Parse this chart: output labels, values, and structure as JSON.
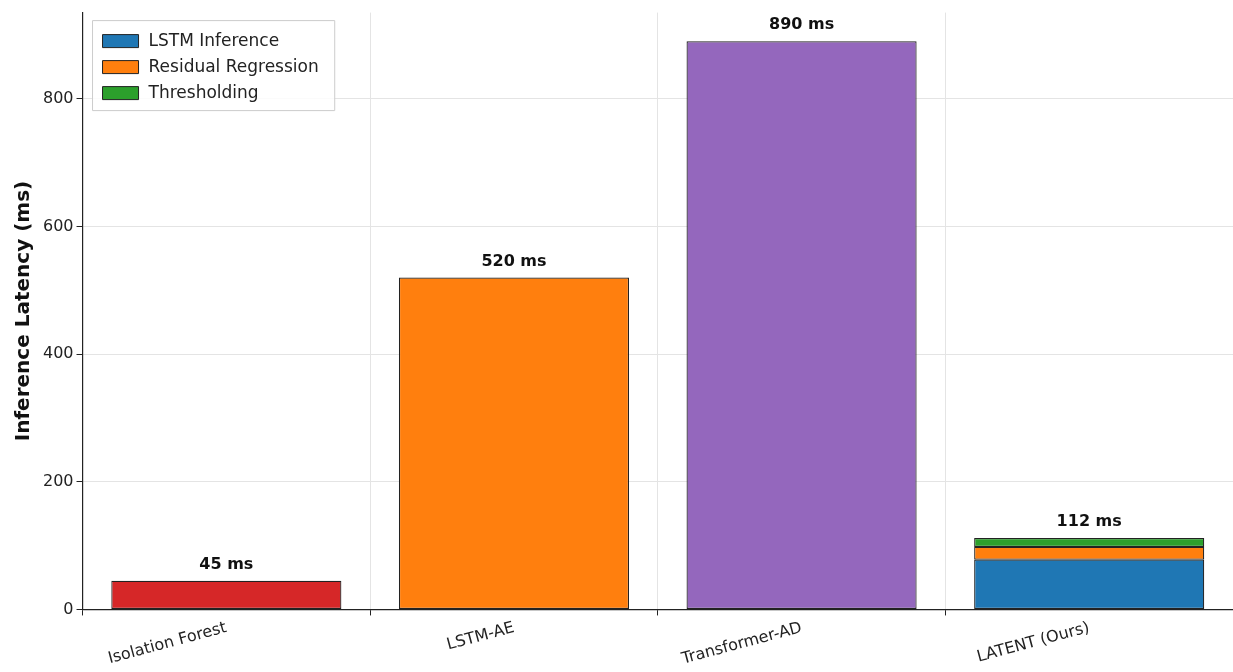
{
  "chart_data": {
    "type": "bar",
    "stacked": true,
    "ylabel": "Inference Latency (ms)",
    "categories": [
      "Isolation Forest",
      "LSTM-AE",
      "Transformer-AD",
      "LATENT (Ours)"
    ],
    "series": [
      {
        "colors": [
          "#d62728",
          "#ff7f0e",
          "#9467bd",
          null
        ],
        "values": [
          45,
          520,
          890,
          null
        ]
      },
      {
        "name": "LSTM Inference",
        "color": "#1f77b4",
        "values": [
          null,
          null,
          null,
          78
        ]
      },
      {
        "name": "Residual Regression",
        "color": "#ff7f0e",
        "values": [
          null,
          null,
          null,
          20
        ]
      },
      {
        "name": "Thresholding",
        "color": "#2ca02c",
        "values": [
          null,
          null,
          null,
          14
        ]
      }
    ],
    "totals": [
      "45 ms",
      "520 ms",
      "890 ms",
      "112 ms"
    ],
    "ylim": [
      0,
      935
    ],
    "yticks": [
      0,
      200,
      400,
      600,
      800
    ],
    "grid": true,
    "legend": "top left"
  }
}
